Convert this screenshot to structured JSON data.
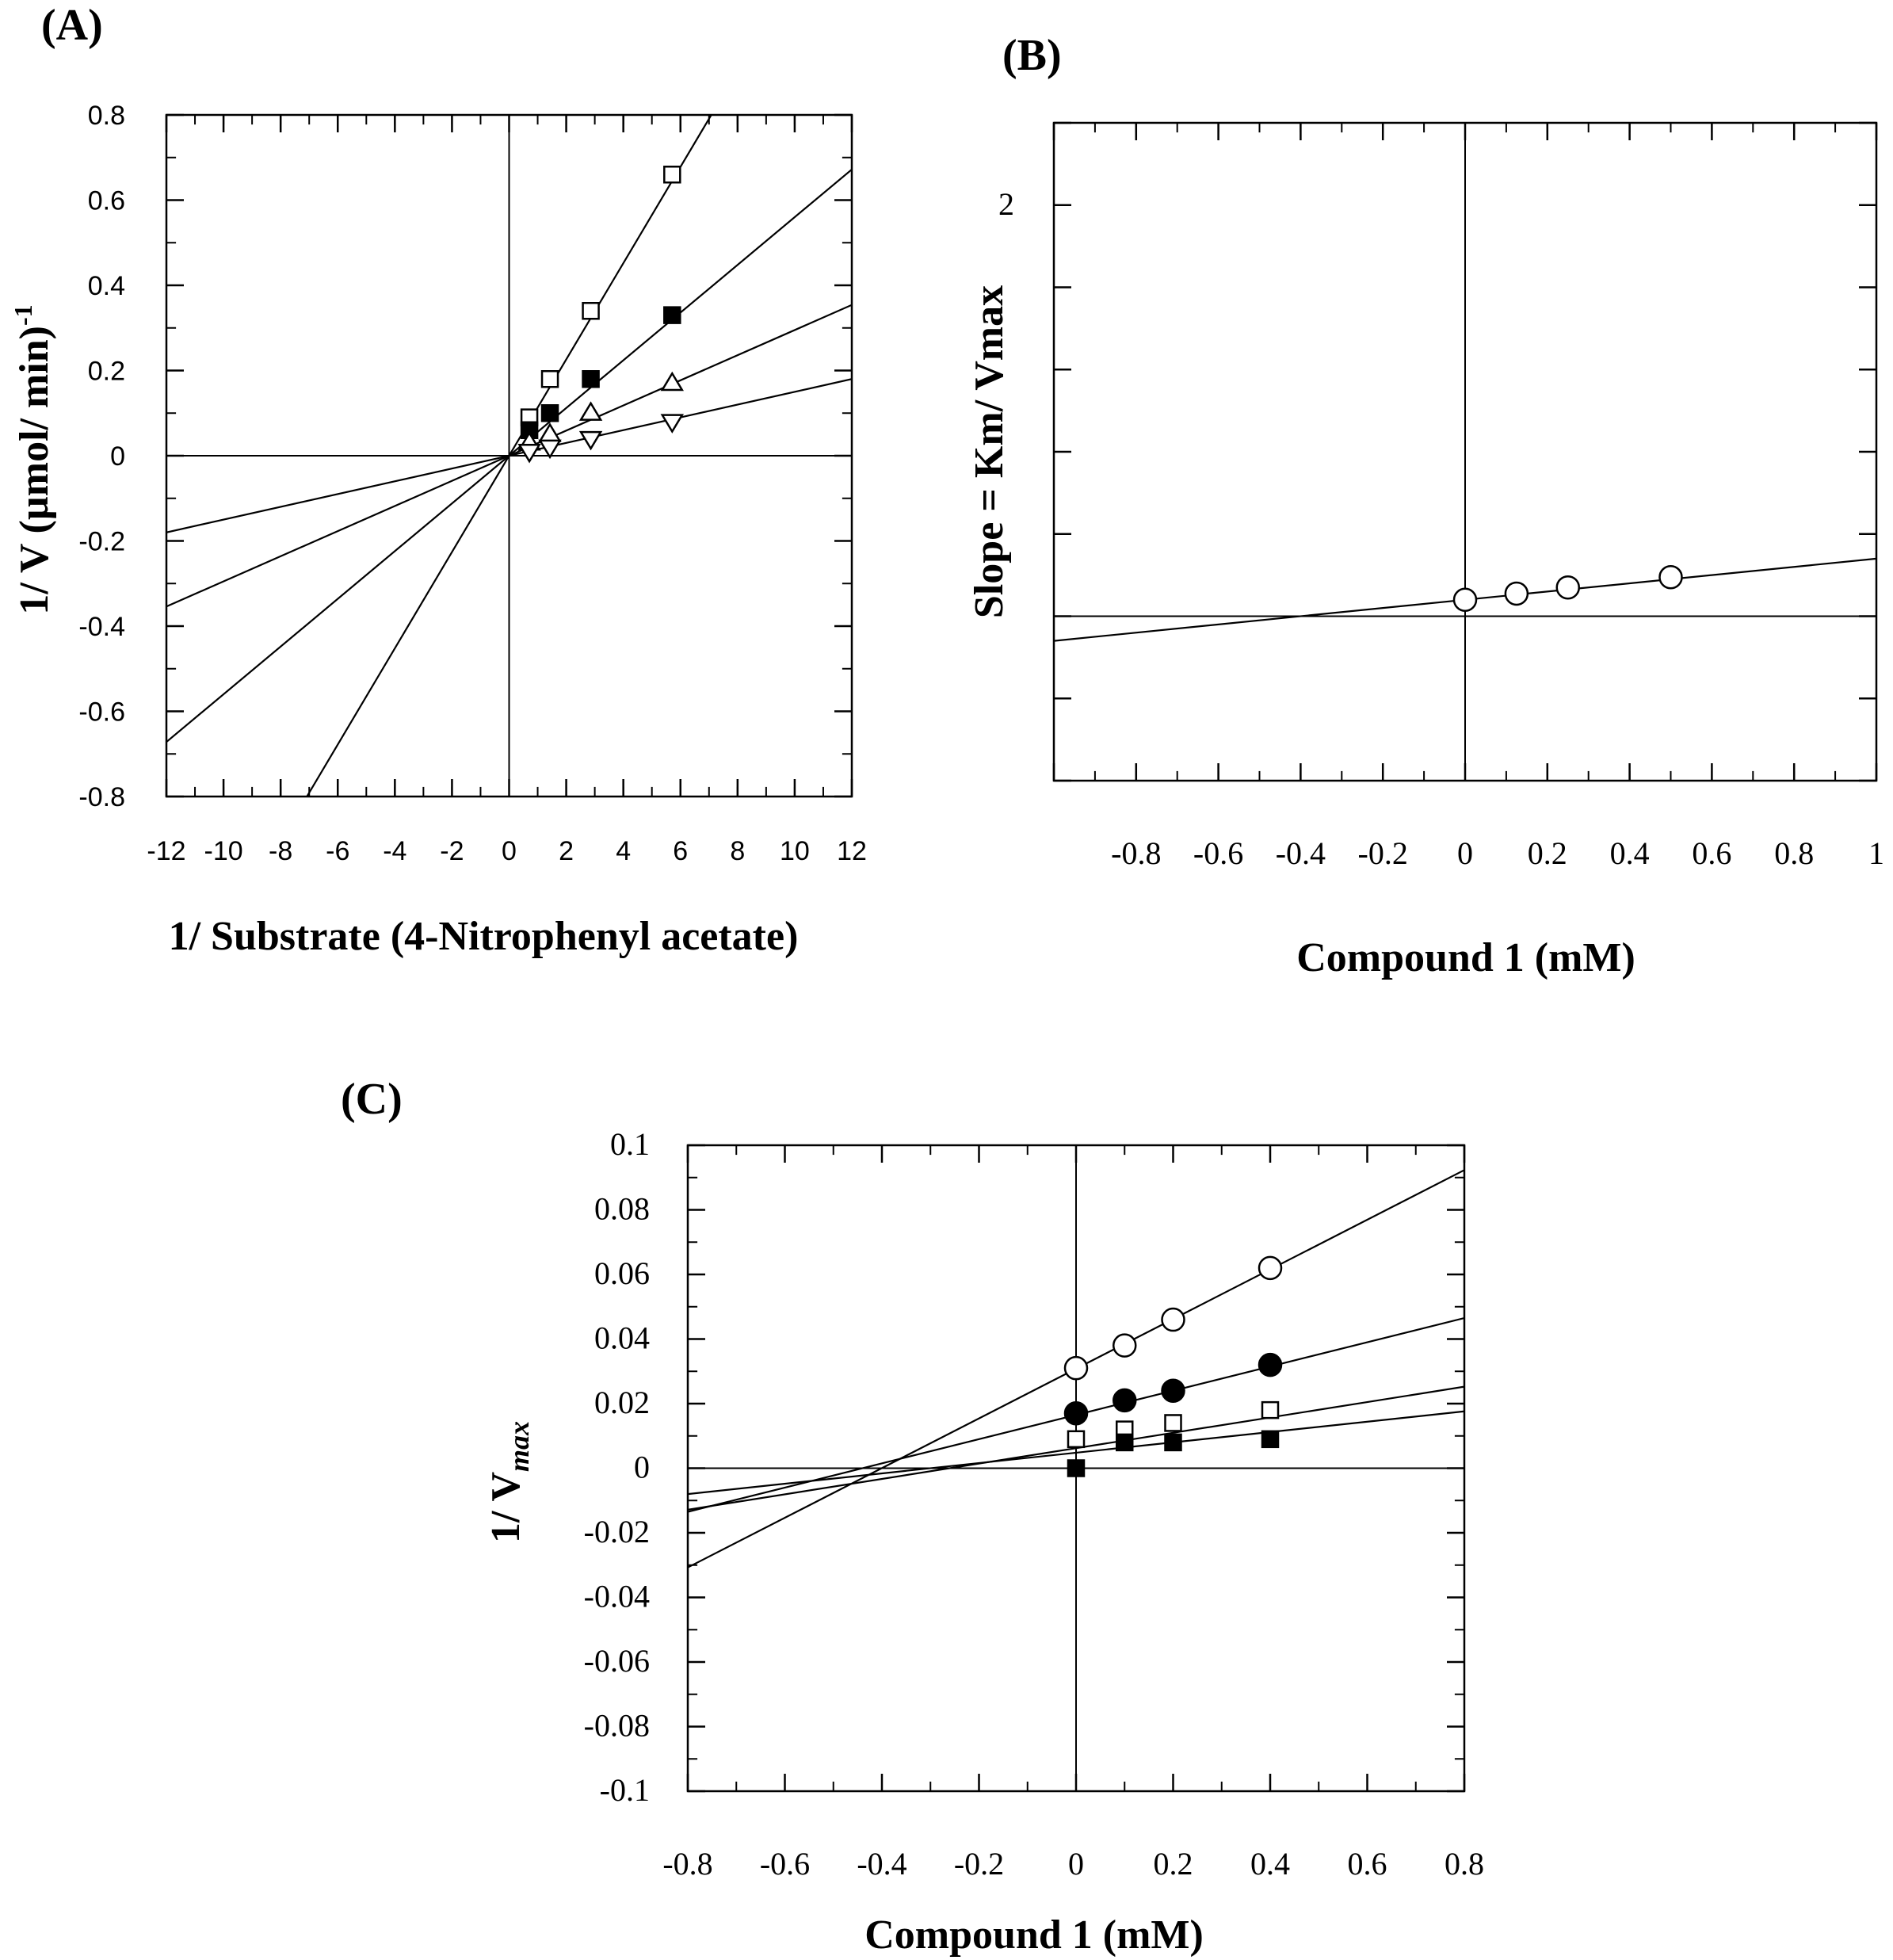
{
  "chart_data": [
    {
      "panel": "(A)",
      "type": "line",
      "xlabel": "1/ Substrate (4-Nitrophenyl acetate)",
      "ylabel": "1/ V (µmol/ min)",
      "ylabel_superscript": "-1",
      "xlim": [
        -12,
        12
      ],
      "ylim": [
        -0.8,
        0.8
      ],
      "xticks": [
        "-12",
        "-10",
        "-8",
        "-6",
        "-4",
        "-2",
        "0",
        "2",
        "4",
        "6",
        "8",
        "10",
        "12"
      ],
      "yticks": [
        "0.8",
        "0.6",
        "0.4",
        "0.2",
        "0",
        "-0.2",
        "-0.4",
        "-0.6",
        "-0.8"
      ],
      "grid": false,
      "legend": "none",
      "series": [
        {
          "marker": "square-open",
          "slope": 0.113,
          "intercept": 0.0,
          "x": [
            0.71,
            1.43,
            2.86,
            5.71
          ],
          "y": [
            0.09,
            0.18,
            0.34,
            0.66
          ]
        },
        {
          "marker": "square-filled",
          "slope": 0.056,
          "intercept": 0.0,
          "x": [
            0.71,
            1.43,
            2.86,
            5.71
          ],
          "y": [
            0.06,
            0.1,
            0.18,
            0.33
          ]
        },
        {
          "marker": "triangle-up-open",
          "slope": 0.0295,
          "intercept": 0.0,
          "x": [
            0.71,
            1.43,
            2.86,
            5.71
          ],
          "y": [
            0.03,
            0.05,
            0.1,
            0.17
          ]
        },
        {
          "marker": "triangle-down-open",
          "slope": 0.015,
          "intercept": 0.0,
          "x": [
            0.71,
            1.43,
            2.86,
            5.71
          ],
          "y": [
            0.01,
            0.02,
            0.04,
            0.08
          ]
        }
      ]
    },
    {
      "panel": "(B)",
      "type": "line",
      "xlabel": "Compound 1 (mM)",
      "ylabel": "Slope = Km/ Vmax",
      "xlim": [
        -1.0,
        1.0
      ],
      "ylim": [
        -0.8,
        2.4
      ],
      "xticks": [
        "-0.8",
        "-0.6",
        "-0.4",
        "-0.2",
        "0",
        "0.2",
        "0.4",
        "0.6",
        "0.8",
        "1"
      ],
      "yticks": [
        "2"
      ],
      "grid": false,
      "legend": "none",
      "series": [
        {
          "marker": "circle-open",
          "slope": 0.2,
          "intercept": 0.08,
          "x": [
            0.0,
            0.125,
            0.25,
            0.5
          ],
          "y": [
            0.08,
            0.11,
            0.14,
            0.19
          ]
        }
      ]
    },
    {
      "panel": "(C)",
      "type": "line",
      "xlabel": "Compound 1 (mM)",
      "ylabel": "1/ V",
      "ylabel_subscript": "max",
      "xlim": [
        -0.8,
        0.8
      ],
      "ylim": [
        -0.1,
        0.1
      ],
      "xticks": [
        "-0.8",
        "-0.6",
        "-0.4",
        "-0.2",
        "0",
        "0.2",
        "0.4",
        "0.6",
        "0.8"
      ],
      "yticks": [
        "0.1",
        "0.08",
        "0.06",
        "0.04",
        "0.02",
        "0",
        "-0.02",
        "-0.04",
        "-0.06",
        "-0.08",
        "-0.1"
      ],
      "grid": false,
      "legend": "none",
      "series": [
        {
          "marker": "circle-open",
          "slope": 0.0769,
          "intercept": 0.0308,
          "x": [
            0.0,
            0.1,
            0.2,
            0.4
          ],
          "y": [
            0.031,
            0.038,
            0.046,
            0.062
          ]
        },
        {
          "marker": "circle-filled",
          "slope": 0.0375,
          "intercept": 0.0165,
          "x": [
            0.0,
            0.1,
            0.2,
            0.4
          ],
          "y": [
            0.017,
            0.021,
            0.024,
            0.032
          ]
        },
        {
          "marker": "square-open",
          "slope": 0.0238,
          "intercept": 0.0062,
          "x": [
            0.0,
            0.1,
            0.2,
            0.4
          ],
          "y": [
            0.009,
            0.012,
            0.014,
            0.018
          ]
        },
        {
          "marker": "square-filled",
          "slope": 0.016,
          "intercept": 0.0048,
          "x": [
            0.0,
            0.1,
            0.2,
            0.4
          ],
          "y": [
            0.0,
            0.008,
            0.008,
            0.009
          ]
        }
      ]
    }
  ]
}
